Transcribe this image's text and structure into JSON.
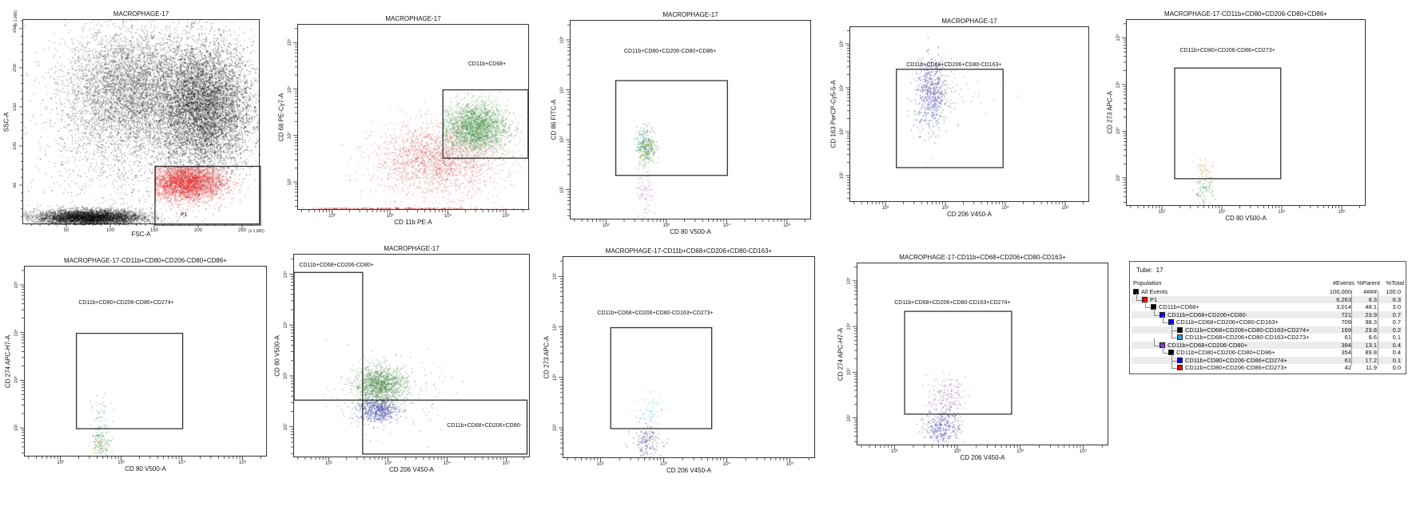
{
  "chart_data": [
    {
      "type": "scatter",
      "title": "MACROPHAGE-17",
      "xlabel": "FSC-A",
      "ylabel": "SSC-A",
      "scale": "linear",
      "multiplier": "(x 1,000)",
      "xlim": [
        0,
        270
      ],
      "ylim": [
        0,
        262
      ],
      "xticks": [
        50,
        100,
        150,
        200,
        250
      ],
      "yticks": [
        50,
        100,
        150,
        200,
        250
      ],
      "gates": [
        {
          "name": "P1",
          "x": [
            150,
            270
          ],
          "y": [
            0,
            75
          ],
          "label_at": [
            180,
            10
          ]
        }
      ],
      "populations": [
        {
          "color": "#000000",
          "n": 9000,
          "center": [
            205,
            150
          ],
          "sd": [
            28,
            42
          ]
        },
        {
          "color": "#000000",
          "n": 4500,
          "center": [
            120,
            175
          ],
          "sd": [
            35,
            38
          ]
        },
        {
          "color": "#000000",
          "n": 5000,
          "center": [
            75,
            10
          ],
          "sd": [
            30,
            5
          ]
        },
        {
          "color": "#000000",
          "n": 1500,
          "center": [
            110,
            110
          ],
          "sd": [
            50,
            60
          ]
        },
        {
          "color": "#e01010",
          "n": 3500,
          "center": [
            185,
            55
          ],
          "sd": [
            22,
            12
          ],
          "clip_to_gate": 0
        }
      ]
    },
    {
      "type": "scatter",
      "title": "MACROPHAGE-17",
      "xlabel": "CD 11b PE-A",
      "ylabel": "CD 68 PE-Cy7-A",
      "scale": "log",
      "xlim": [
        1.4,
        5.4
      ],
      "ylim": [
        1.4,
        5.4
      ],
      "decades": [
        2,
        3,
        4,
        5
      ],
      "gates": [
        {
          "name": "CD11b+CD68+",
          "x": [
            3.9,
            5.37
          ],
          "y": [
            2.53,
            4.0
          ],
          "label_at": [
            4.35,
            4.5
          ]
        }
      ],
      "populations": [
        {
          "color": "#c02020",
          "n": 2200,
          "center": [
            3.8,
            2.5
          ],
          "sd": [
            0.55,
            0.38
          ]
        },
        {
          "color": "#c02020",
          "n": 300,
          "center": [
            3.0,
            1.45
          ],
          "sd": [
            1.0,
            0.01
          ]
        },
        {
          "color": "#1a7a1a",
          "n": 2500,
          "center": [
            4.45,
            3.2
          ],
          "sd": [
            0.28,
            0.28
          ],
          "clip_to_gate": 0
        }
      ]
    },
    {
      "type": "scatter",
      "title": "MACROPHAGE-17",
      "xlabel": "CD 80 V500-A",
      "ylabel": "CD 86 FITC-A",
      "scale": "log",
      "xlim": [
        1.4,
        5.4
      ],
      "ylim": [
        1.4,
        5.4
      ],
      "decades": [
        2,
        3,
        4,
        5
      ],
      "gates": [
        {
          "name": "CD11b+CD80+CD206-CD80+CD86+",
          "x": [
            2.15,
            4.0
          ],
          "y": [
            2.3,
            4.2
          ],
          "label_at": [
            2.3,
            4.75
          ]
        }
      ],
      "populations": [
        {
          "color": "#1a7a3a",
          "n": 220,
          "center": [
            2.65,
            2.9
          ],
          "sd": [
            0.08,
            0.2
          ]
        },
        {
          "color": "#c9a000",
          "n": 60,
          "center": [
            2.65,
            2.85
          ],
          "sd": [
            0.07,
            0.15
          ]
        },
        {
          "color": "#30a0c0",
          "n": 60,
          "center": [
            2.62,
            2.95
          ],
          "sd": [
            0.07,
            0.15
          ]
        },
        {
          "color": "#b040c0",
          "n": 60,
          "center": [
            2.62,
            1.9
          ],
          "sd": [
            0.07,
            0.25
          ]
        }
      ]
    },
    {
      "type": "scatter",
      "title": "MACROPHAGE-17",
      "xlabel": "CD 206 V450-A",
      "ylabel": "CD 163 PerCP-Cy5-5-A",
      "scale": "log",
      "xlim": [
        1.4,
        5.4
      ],
      "ylim": [
        1.4,
        5.4
      ],
      "decades": [
        2,
        3,
        4,
        5
      ],
      "gates": [
        {
          "name": "CD11b+CD68+CD206+CD80-CD163+",
          "x": [
            2.17,
            3.95
          ],
          "y": [
            2.2,
            4.44
          ],
          "label_at": [
            2.35,
            4.5
          ]
        }
      ],
      "populations": [
        {
          "color": "#2a2aa0",
          "n": 450,
          "center": [
            2.75,
            3.85
          ],
          "sd": [
            0.14,
            0.4
          ]
        },
        {
          "color": "#8a4a9a",
          "n": 150,
          "center": [
            2.8,
            4.1
          ],
          "sd": [
            0.15,
            0.3
          ]
        },
        {
          "color": "#60b0d0",
          "n": 60,
          "center": [
            2.72,
            3.3
          ],
          "sd": [
            0.1,
            0.35
          ]
        },
        {
          "color": "#7a6a9a",
          "n": 30,
          "center": [
            3.3,
            3.9
          ],
          "sd": [
            0.35,
            0.25
          ]
        }
      ]
    },
    {
      "type": "scatter",
      "title": "MACROPHAGE-17-CD11b+CD80+CD206-CD80+CD86+",
      "xlabel": "CD 80 V500-A",
      "ylabel": "CD 273 APC-A",
      "scale": "log",
      "xlim": [
        1.4,
        5.4
      ],
      "ylim": [
        1.4,
        5.4
      ],
      "decades": [
        2,
        3,
        4,
        5
      ],
      "gates": [
        {
          "name": "CD11b+CD80+CD206-CD86+CD273+",
          "x": [
            2.2,
            3.97
          ],
          "y": [
            2.0,
            4.37
          ],
          "label_at": [
            2.3,
            4.7
          ]
        }
      ],
      "populations": [
        {
          "color": "#d09020",
          "n": 45,
          "center": [
            2.68,
            2.2
          ],
          "sd": [
            0.08,
            0.15
          ]
        },
        {
          "color": "#2a8a3a",
          "n": 80,
          "center": [
            2.68,
            1.75
          ],
          "sd": [
            0.08,
            0.15
          ]
        }
      ]
    },
    {
      "type": "scatter",
      "title": "MACROPHAGE-17-CD11b+CD80+CD206-CD80+CD86+",
      "xlabel": "CD 80 V500-A",
      "ylabel": "CD 274 APC-H7-A",
      "scale": "log",
      "xlim": [
        1.4,
        5.4
      ],
      "ylim": [
        1.4,
        5.4
      ],
      "decades": [
        2,
        3,
        4,
        5
      ],
      "gates": [
        {
          "name": "CD11b+CD80+CD206-CD86+CD274+",
          "x": [
            2.25,
            4.0
          ],
          "y": [
            2.0,
            4.0
          ],
          "label_at": [
            2.3,
            4.6
          ]
        }
      ],
      "populations": [
        {
          "color": "#3080c0",
          "n": 40,
          "center": [
            2.65,
            2.3
          ],
          "sd": [
            0.08,
            0.2
          ]
        },
        {
          "color": "#2a8a3a",
          "n": 110,
          "center": [
            2.65,
            1.75
          ],
          "sd": [
            0.08,
            0.15
          ]
        },
        {
          "color": "#c09020",
          "n": 30,
          "center": [
            2.65,
            1.6
          ],
          "sd": [
            0.08,
            0.1
          ]
        }
      ]
    },
    {
      "type": "scatter",
      "title": "MACROPHAGE-17",
      "xlabel": "CD 206 V450-A",
      "ylabel": "CD 80 V500-A",
      "scale": "log",
      "xlim": [
        1.4,
        5.4
      ],
      "ylim": [
        1.4,
        5.4
      ],
      "decades": [
        2,
        3,
        4,
        5
      ],
      "gates": [
        {
          "name": "CD11b+CD68+CD206-CD80+",
          "x": [
            1.4,
            2.56
          ],
          "y": [
            2.54,
            5.05
          ],
          "label_at": [
            1.5,
            5.15
          ]
        },
        {
          "name": "CD11b+CD68+CD206+CD80-",
          "x": [
            2.56,
            5.34
          ],
          "y": [
            1.48,
            2.54
          ],
          "label_at": [
            4.0,
            2.0
          ]
        }
      ]
    },
    {
      "type": "scatter",
      "title": "MACROPHAGE-17-CD11b+CD68+CD206+CD80-CD163+",
      "xlabel": "CD 206 V450-A",
      "ylabel": "CD 273 APC-A",
      "scale": "log",
      "xlim": [
        1.4,
        5.4
      ],
      "ylim": [
        1.4,
        5.4
      ],
      "decades": [
        2,
        3,
        4,
        5
      ],
      "gates": [
        {
          "name": "CD11b+CD68+CD206+CD80-CD163+CD273+",
          "x": [
            2.15,
            3.75
          ],
          "y": [
            2.0,
            4.0
          ],
          "label_at": [
            1.95,
            4.25
          ]
        }
      ],
      "populations": [
        {
          "color": "#40c0d0",
          "n": 70,
          "center": [
            2.75,
            2.3
          ],
          "sd": [
            0.12,
            0.2
          ]
        },
        {
          "color": "#2a2a80",
          "n": 150,
          "center": [
            2.72,
            1.75
          ],
          "sd": [
            0.12,
            0.15
          ]
        }
      ]
    },
    {
      "type": "scatter",
      "title": "MACROPHAGE-17-CD11b+CD68+CD206+CD80-CD163+",
      "xlabel": "CD 206 V450-A",
      "ylabel": "CD 274 APC-H7-A",
      "scale": "log",
      "xlim": [
        1.4,
        5.4
      ],
      "ylim": [
        1.4,
        5.4
      ],
      "decades": [
        2,
        3,
        4,
        5
      ],
      "gates": [
        {
          "name": "CD11b+CD68+CD206+CD80-CD163+CD274+",
          "x": [
            2.15,
            3.85
          ],
          "y": [
            2.1,
            4.35
          ],
          "label_at": [
            2.0,
            4.5
          ]
        }
      ],
      "populations": [
        {
          "color": "#8a4a8a",
          "n": 150,
          "center": [
            2.8,
            2.5
          ],
          "sd": [
            0.15,
            0.2
          ]
        },
        {
          "color": "#2a2aa0",
          "n": 300,
          "center": [
            2.75,
            1.85
          ],
          "sd": [
            0.14,
            0.2
          ]
        }
      ]
    }
  ],
  "population_table": {
    "tube_label": "Tube:",
    "tube_value": "17",
    "headers": {
      "population": "Population",
      "events": "#Events",
      "parent": "%Parent",
      "total": "%Total"
    },
    "rows": [
      {
        "name": "All Events",
        "level": 0,
        "color": "#000000",
        "events": "100,000",
        "parent": "####",
        "total": "100.0"
      },
      {
        "name": "P1",
        "level": 1,
        "color": "#ff0000",
        "events": "6,263",
        "parent": "6.3",
        "total": "6.3"
      },
      {
        "name": "CD11b+CD68+",
        "level": 2,
        "color": "#000000",
        "events": "3,014",
        "parent": "48.1",
        "total": "3.0"
      },
      {
        "name": "CD11b+CD68+CD206+CD80-",
        "level": 3,
        "color": "#0000ff",
        "events": "721",
        "parent": "23.9",
        "total": "0.7"
      },
      {
        "name": "CD11b+CD68+CD206+CD80-CD163+",
        "level": 4,
        "color": "#0000ff",
        "events": "709",
        "parent": "98.3",
        "total": "0.7"
      },
      {
        "name": "CD11b+CD68+CD206+CD80-CD163+CD274+",
        "level": 5,
        "color": "#000000",
        "events": "169",
        "parent": "23.8",
        "total": "0.2"
      },
      {
        "name": "CD11b+CD68+CD206+CD80-CD163+CD273+",
        "level": 5,
        "color": "#1e9fff",
        "events": "61",
        "parent": "8.6",
        "total": "0.1"
      },
      {
        "name": "CD11b+CD68+CD206-CD80+",
        "level": 3,
        "color": "#8a2be2",
        "events": "394",
        "parent": "13.1",
        "total": "0.4"
      },
      {
        "name": "CD11b+CD80+CD206-CD80+CD86+",
        "level": 4,
        "color": "#000000",
        "events": "354",
        "parent": "89.8",
        "total": "0.4"
      },
      {
        "name": "CD11b+CD80+CD206-CD86+CD274+",
        "level": 5,
        "color": "#0000ff",
        "events": "61",
        "parent": "17.2",
        "total": "0.1"
      },
      {
        "name": "CD11b+CD80+CD206-CD86+CD273+",
        "level": 5,
        "color": "#ff0000",
        "events": "42",
        "parent": "11.9",
        "total": "0.0"
      }
    ]
  }
}
